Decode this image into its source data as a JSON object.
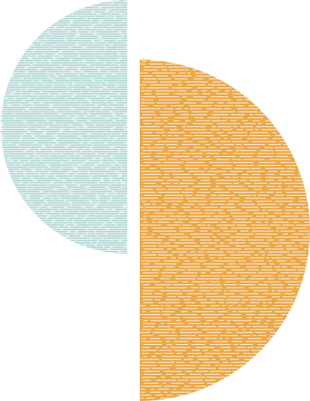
{
  "graphic": {
    "shapes": [
      {
        "name": "teal-half-circle",
        "color": "#a8d0cd",
        "texture": "horizontal-dashed-lines",
        "side": "left"
      },
      {
        "name": "orange-half-circle",
        "color": "#eaa94b",
        "texture": "horizontal-dashed-lines",
        "side": "right"
      }
    ],
    "background": "#ffffff"
  }
}
